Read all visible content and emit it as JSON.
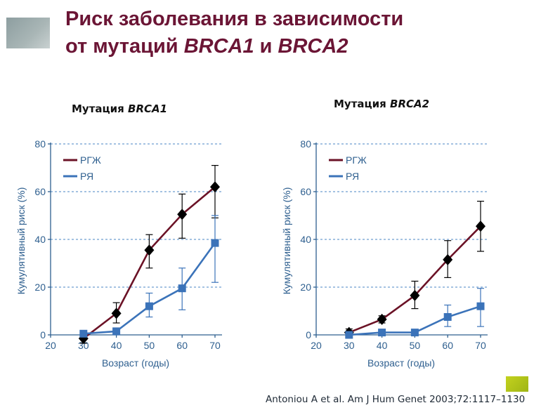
{
  "slide": {
    "title_line1": "Риск заболевания в зависимости",
    "title_line2_prefix": "от мутаций ",
    "title_line2_gene1": "BRCA1",
    "title_line2_mid": " и ",
    "title_line2_gene2": "BRCA2",
    "citation": "Antoniou A et al. Am J Hum Genet 2003;72:1117–1130"
  },
  "colors": {
    "title": "#6b1535",
    "rgzh": "#6b1226",
    "rya": "#3b73b9",
    "marker_rgzh": "#000000",
    "marker_rya": "#3b73b9",
    "axis": "#2e5f8f",
    "grid": "#4a86c5"
  },
  "chart_data": [
    {
      "type": "line",
      "title_prefix": "Мутация ",
      "title_gene": "BRCA1",
      "xlabel": "Возраст (годы)",
      "ylabel": "Кумулятивный риск (%)",
      "xlim": [
        20,
        70
      ],
      "ylim": [
        0,
        80
      ],
      "xticks": [
        20,
        30,
        40,
        50,
        60,
        70
      ],
      "yticks": [
        0,
        20,
        40,
        60,
        80
      ],
      "grid": "horizontal dashed",
      "legend_position": "top-left",
      "series": [
        {
          "name": "РГЖ",
          "x": [
            30,
            40,
            50,
            60,
            70
          ],
          "y": [
            -1.5,
            9,
            35.5,
            50.5,
            62
          ],
          "err_low": [
            -3.5,
            5,
            28,
            40.5,
            49
          ],
          "err_high": [
            0.5,
            13.5,
            42,
            59,
            71
          ],
          "marker": "diamond"
        },
        {
          "name": "РЯ",
          "x": [
            30,
            40,
            50,
            60,
            70
          ],
          "y": [
            0.5,
            1.5,
            12,
            19.5,
            38.5
          ],
          "err_low": [
            0,
            0,
            7.5,
            10.5,
            22
          ],
          "err_high": [
            0.5,
            2.5,
            17.5,
            28,
            50
          ],
          "marker": "square"
        }
      ]
    },
    {
      "type": "line",
      "title_prefix": "Мутация ",
      "title_gene": "BRCA2",
      "xlabel": "Возраст (годы)",
      "ylabel": "Кумулятивный риск (%)",
      "xlim": [
        20,
        70
      ],
      "ylim": [
        0,
        80
      ],
      "xticks": [
        20,
        30,
        40,
        50,
        60,
        70
      ],
      "yticks": [
        0,
        20,
        40,
        60,
        80
      ],
      "grid": "horizontal dashed",
      "legend_position": "top-left",
      "series": [
        {
          "name": "РГЖ",
          "x": [
            30,
            40,
            50,
            60,
            70
          ],
          "y": [
            1,
            6.5,
            16.5,
            31.5,
            45.5
          ],
          "err_low": [
            0,
            5,
            11,
            24,
            35
          ],
          "err_high": [
            2.5,
            8,
            22.5,
            39.5,
            56
          ],
          "marker": "diamond"
        },
        {
          "name": "РЯ",
          "x": [
            30,
            40,
            50,
            60,
            70
          ],
          "y": [
            0,
            1,
            1,
            7.5,
            12
          ],
          "err_low": [
            0,
            0.5,
            0.5,
            3.5,
            3.5
          ],
          "err_high": [
            0,
            1.5,
            1.5,
            12.5,
            19.5
          ],
          "marker": "square"
        }
      ]
    }
  ]
}
